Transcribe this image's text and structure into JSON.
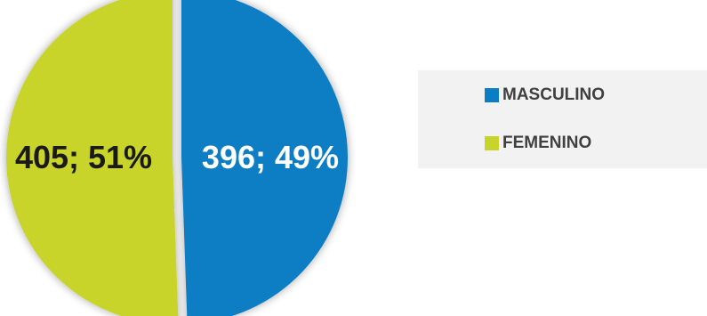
{
  "chart_data": {
    "type": "pie",
    "title": "",
    "slices": [
      {
        "name": "MASCULINO",
        "value": 396,
        "percent": 49,
        "label": "396; 49%",
        "color": "#0a7dc4",
        "label_color": "#ffffff"
      },
      {
        "name": "FEMENINO",
        "value": 405,
        "percent": 51,
        "label": "405; 51%",
        "color": "#c8d42c",
        "label_color": "#1a1a1a"
      }
    ],
    "legend": {
      "placement": "right",
      "entries": [
        "MASCULINO",
        "FEMENINO"
      ]
    }
  }
}
